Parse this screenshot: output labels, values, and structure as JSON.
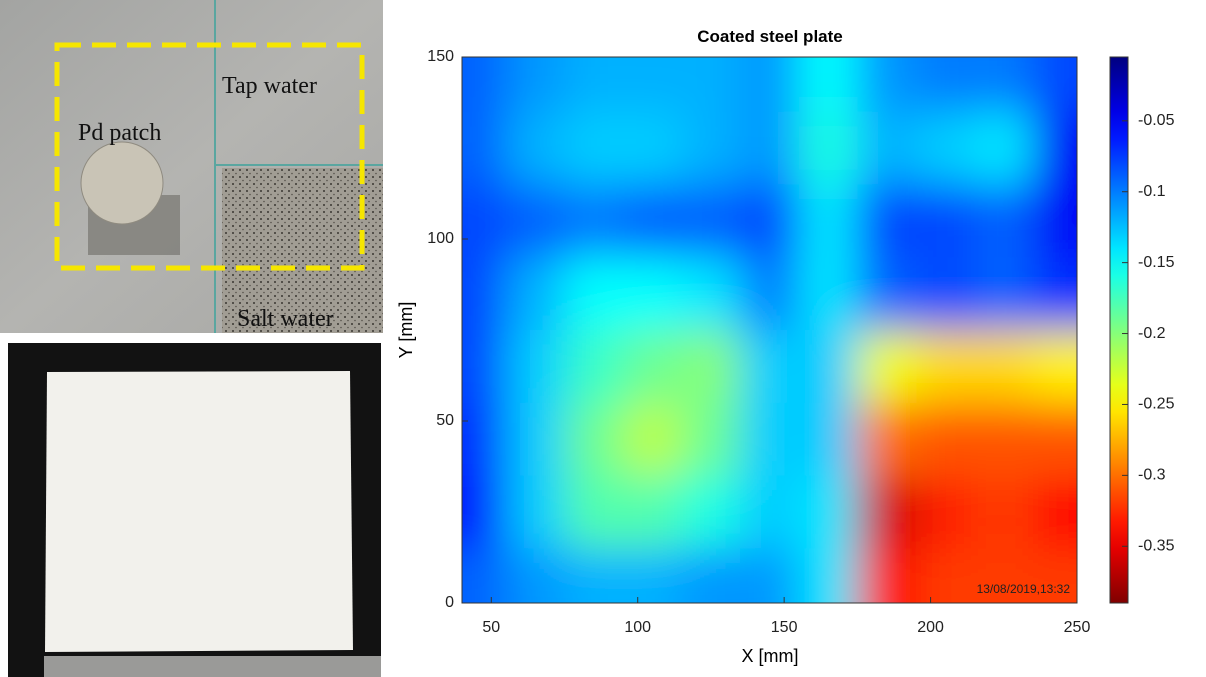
{
  "photo_labels": {
    "tap_water": "Tap water",
    "pd_patch": "Pd patch",
    "salt_water": "Salt water"
  },
  "chart_data": {
    "type": "heatmap",
    "title": "Coated steel plate",
    "x_label": "X [mm]",
    "y_label": "Y [mm]",
    "annotation": "13/08/2019,13:32",
    "xlim": [
      40,
      250
    ],
    "xticks": [
      50,
      100,
      150,
      200,
      250
    ],
    "ylim": [
      0,
      150
    ],
    "yticks": [
      0,
      50,
      100,
      150
    ],
    "colormap": "jet-reversed",
    "clim": [
      -0.39,
      -0.005
    ],
    "colorbar_ticks": [
      -0.05,
      -0.1,
      -0.15,
      -0.2,
      -0.25,
      -0.3,
      -0.35
    ],
    "x": [
      45,
      65,
      85,
      105,
      125,
      145,
      165,
      185,
      205,
      225,
      245
    ],
    "y": [
      145,
      125,
      105,
      85,
      65,
      45,
      25,
      5
    ],
    "z": [
      [
        -0.09,
        -0.11,
        -0.12,
        -0.12,
        -0.12,
        -0.11,
        -0.15,
        -0.11,
        -0.1,
        -0.1,
        -0.08
      ],
      [
        -0.09,
        -0.12,
        -0.13,
        -0.13,
        -0.12,
        -0.11,
        -0.16,
        -0.12,
        -0.13,
        -0.14,
        -0.05
      ],
      [
        -0.08,
        -0.09,
        -0.1,
        -0.09,
        -0.09,
        -0.08,
        -0.14,
        -0.08,
        -0.08,
        -0.09,
        -0.05
      ],
      [
        -0.08,
        -0.12,
        -0.15,
        -0.15,
        -0.14,
        -0.1,
        -0.14,
        -0.09,
        -0.08,
        -0.09,
        -0.07
      ],
      [
        -0.08,
        -0.13,
        -0.17,
        -0.19,
        -0.2,
        -0.13,
        -0.13,
        -0.24,
        -0.26,
        -0.26,
        -0.25
      ],
      [
        -0.07,
        -0.13,
        -0.19,
        -0.22,
        -0.19,
        -0.13,
        -0.13,
        -0.3,
        -0.31,
        -0.31,
        -0.31
      ],
      [
        -0.06,
        -0.13,
        -0.18,
        -0.18,
        -0.16,
        -0.13,
        -0.14,
        -0.36,
        -0.33,
        -0.32,
        -0.34
      ],
      [
        -0.09,
        -0.11,
        -0.12,
        -0.12,
        -0.11,
        -0.11,
        -0.14,
        -0.34,
        -0.32,
        -0.32,
        -0.32
      ]
    ]
  }
}
